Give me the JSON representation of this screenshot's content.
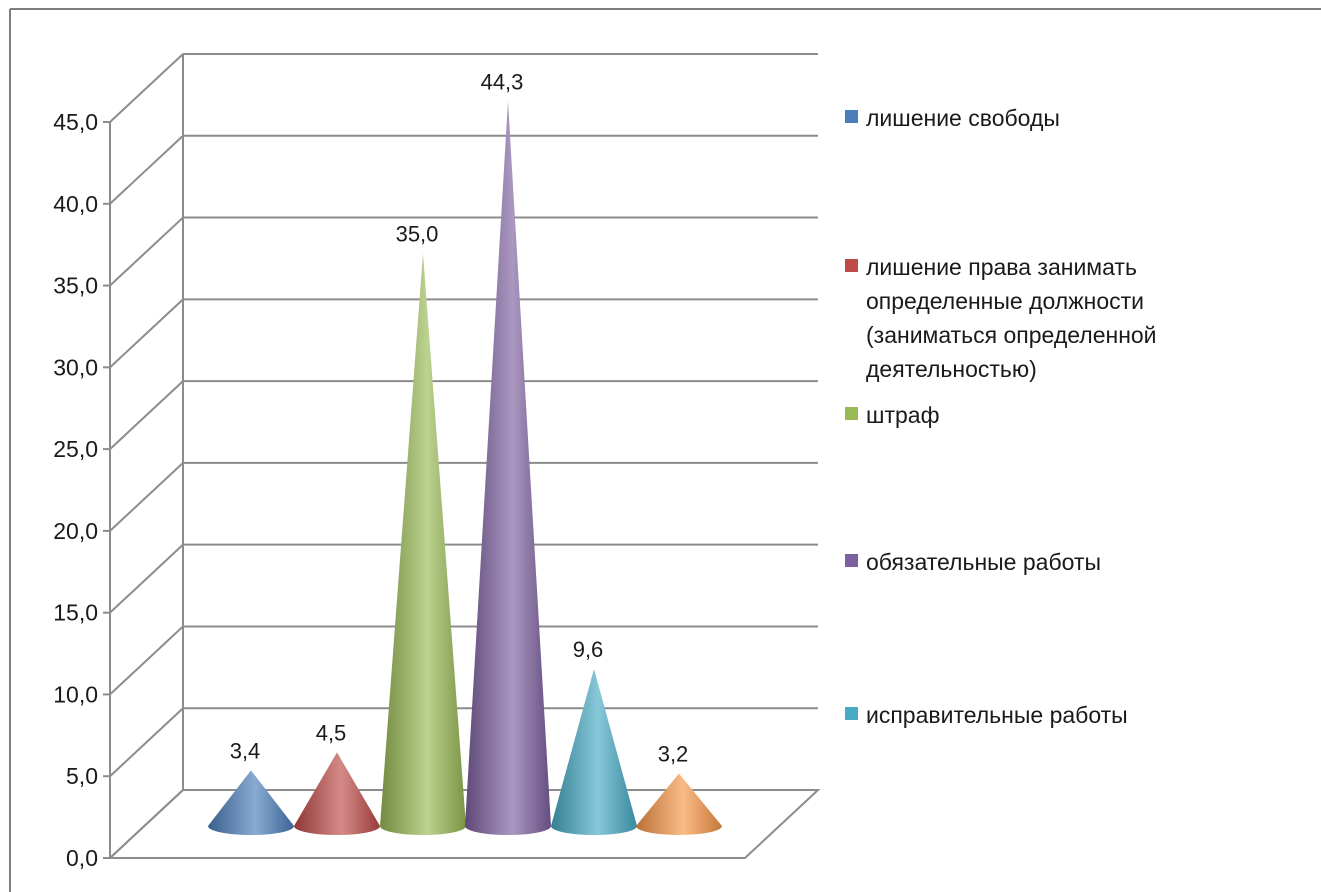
{
  "chart_data": {
    "type": "bar",
    "bar_shape": "cone-3d",
    "title": "",
    "xlabel": "",
    "ylabel": "",
    "ylim": [
      0,
      45
    ],
    "yticks": [
      "0,0",
      "5,0",
      "10,0",
      "15,0",
      "20,0",
      "25,0",
      "30,0",
      "35,0",
      "40,0",
      "45,0"
    ],
    "grid": true,
    "legend_position": "right",
    "series": [
      {
        "name": "лишение свободы",
        "value": 3.4,
        "label": "3,4",
        "color": "#4a7ebb"
      },
      {
        "name": "лишение права занимать определенные должности (заниматься определенной деятельностью)",
        "value": 4.5,
        "label": "4,5",
        "color": "#be4b48"
      },
      {
        "name": "штраф",
        "value": 35.0,
        "label": "35,0",
        "color": "#98b954"
      },
      {
        "name": "обязательные работы",
        "value": 44.3,
        "label": "44,3",
        "color": "#7d60a0"
      },
      {
        "name": "исправительные работы",
        "value": 9.6,
        "label": "9,6",
        "color": "#46aac5"
      },
      {
        "value": 3.2,
        "label": "3,2",
        "color": "#f79646"
      }
    ]
  }
}
